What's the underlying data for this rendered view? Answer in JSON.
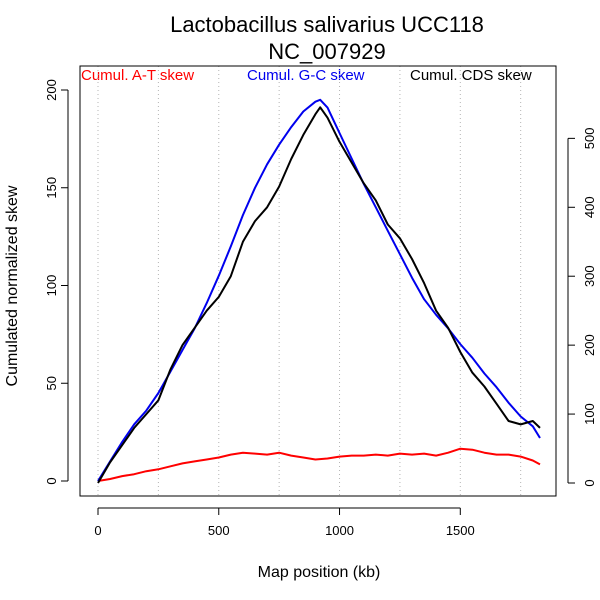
{
  "chart_data": {
    "type": "line",
    "title": "Lactobacillus salivarius UCC118",
    "subtitle": "NC_007929",
    "xlabel": "Map position (kb)",
    "ylabel": "Cumulated normalized skew",
    "xlim": [
      0,
      1830
    ],
    "ylim_left": [
      0,
      200
    ],
    "ylim_right": [
      0,
      560
    ],
    "x_ticks": [
      0,
      500,
      1000,
      1500
    ],
    "y_ticks_left": [
      0,
      50,
      100,
      150,
      200
    ],
    "y_ticks_right": [
      0,
      100,
      200,
      300,
      400,
      500
    ],
    "x_gridlines": [
      0,
      250,
      500,
      750,
      1000,
      1250,
      1500,
      1750
    ],
    "grid": "vertical dotted",
    "legend": "top, horizontal",
    "series": [
      {
        "name": "Cumul. A-T skew",
        "color": "#ff0000",
        "axis": "left",
        "x": [
          0,
          50,
          100,
          150,
          200,
          250,
          300,
          350,
          400,
          450,
          500,
          550,
          600,
          650,
          700,
          750,
          800,
          850,
          900,
          950,
          1000,
          1050,
          1100,
          1150,
          1200,
          1250,
          1300,
          1350,
          1400,
          1450,
          1500,
          1550,
          1600,
          1650,
          1700,
          1750,
          1800,
          1830
        ],
        "values": [
          0,
          1,
          2.5,
          3.5,
          5,
          6,
          7.5,
          9,
          10,
          11,
          12,
          13.5,
          14.5,
          14,
          13.5,
          14.5,
          13,
          12,
          11,
          11.5,
          12.5,
          13,
          13,
          13.5,
          13,
          14,
          13.5,
          14,
          13,
          14.5,
          16.5,
          16,
          14.5,
          13.5,
          13.5,
          12.5,
          10.5,
          8.5
        ]
      },
      {
        "name": "Cumul. G-C skew",
        "color": "#0000ee",
        "axis": "left",
        "x": [
          0,
          50,
          100,
          150,
          200,
          250,
          300,
          350,
          400,
          450,
          500,
          550,
          600,
          650,
          700,
          750,
          800,
          850,
          900,
          920,
          950,
          1000,
          1050,
          1100,
          1150,
          1200,
          1250,
          1300,
          1350,
          1400,
          1450,
          1500,
          1550,
          1600,
          1650,
          1700,
          1750,
          1800,
          1830
        ],
        "values": [
          0,
          10,
          20,
          29,
          36,
          45,
          56,
          67,
          78,
          91,
          105,
          120,
          136,
          150,
          162,
          172,
          181,
          189,
          194,
          195,
          191,
          178,
          165,
          152,
          140,
          128,
          116,
          104,
          93,
          85,
          78,
          70,
          63,
          55,
          48,
          40,
          33,
          28,
          22
        ]
      },
      {
        "name": "Cumul. CDS skew",
        "color": "#000000",
        "axis": "right",
        "x": [
          0,
          50,
          100,
          150,
          200,
          250,
          300,
          350,
          400,
          450,
          500,
          550,
          600,
          650,
          700,
          750,
          800,
          850,
          900,
          920,
          950,
          1000,
          1050,
          1100,
          1150,
          1200,
          1250,
          1300,
          1350,
          1400,
          1450,
          1500,
          1550,
          1600,
          1650,
          1700,
          1750,
          1800,
          1830
        ],
        "values": [
          0,
          30,
          55,
          80,
          100,
          120,
          165,
          200,
          225,
          250,
          270,
          300,
          350,
          380,
          400,
          430,
          470,
          505,
          535,
          545,
          530,
          495,
          465,
          435,
          410,
          375,
          355,
          325,
          290,
          250,
          225,
          190,
          160,
          140,
          115,
          90,
          85,
          90,
          80
        ]
      }
    ]
  }
}
